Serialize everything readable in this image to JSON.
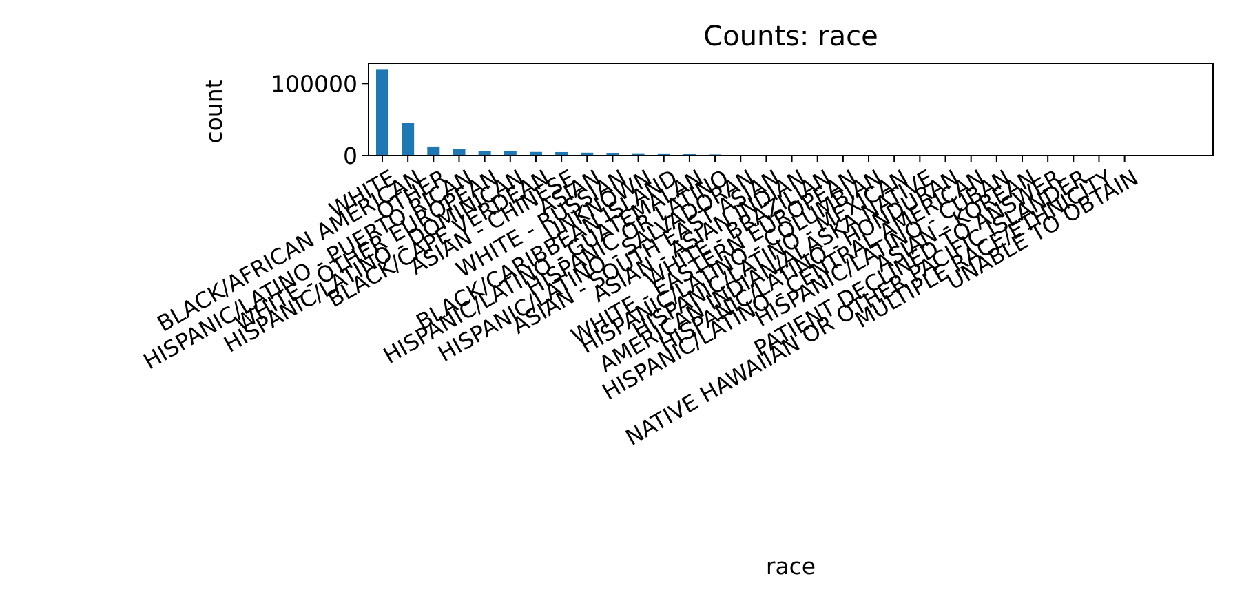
{
  "chart_data": {
    "type": "bar",
    "title": "Counts: race",
    "xlabel": "race",
    "ylabel": "count",
    "ylim": [
      0,
      128000
    ],
    "yticks": [
      0,
      100000
    ],
    "grid": false,
    "legend": "none",
    "bar_color": "#1f77b4",
    "categories": [
      "WHITE",
      "BLACK/AFRICAN AMERICAN",
      "OTHER",
      "HISPANIC/LATINO - PUERTO RICAN",
      "WHITE - OTHER EUROPEAN",
      "HISPANIC/LATINO - DOMINICAN",
      "BLACK/CAPE VERDEAN",
      "ASIAN - CHINESE",
      "ASIAN",
      "WHITE - RUSSIAN",
      "UNKNOWN",
      "BLACK/CARIBBEAN ISLAND",
      "HISPANIC/LATINO - GUATEMALAN",
      "HISPANIC OR LATINO",
      "HISPANIC/LATINO - SALVADORAN",
      "ASIAN - SOUTH EAST ASIAN",
      "ASIAN - ASIAN INDIAN",
      "WHITE - BRAZILIAN",
      "WHITE - EASTERN EUROPEAN",
      "HISPANIC/LATINO - COLUMBIAN",
      "HISPANIC/LATINO - MEXICAN",
      "AMERICAN INDIAN/ALASKA NATIVE",
      "HISPANIC/LATINO - HONDURAN",
      "HISPANIC/LATINO - CENTRAL AMERICAN",
      "HISPANIC/LATINO - CUBAN",
      "ASIAN - KOREAN",
      "PATIENT DECLINED TO ANSWER",
      "NATIVE HAWAIIAN OR OTHER PACIFIC ISLANDER",
      "MULTIPLE RACE/ETHNICITY",
      "UNABLE TO OBTAIN"
    ],
    "values": [
      120000,
      45000,
      12500,
      9500,
      6500,
      6000,
      5000,
      4800,
      4000,
      3800,
      3200,
      3000,
      2900,
      1500,
      900,
      800,
      750,
      700,
      650,
      600,
      550,
      500,
      450,
      400,
      350,
      300,
      250,
      200,
      150,
      100
    ]
  }
}
